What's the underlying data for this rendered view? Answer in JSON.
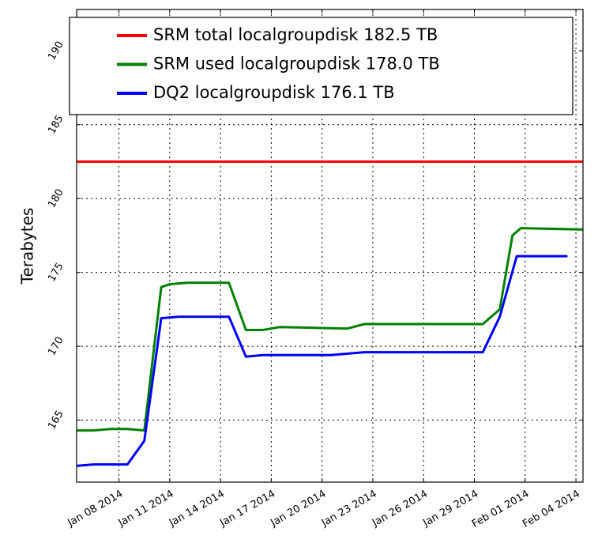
{
  "chart_data": {
    "type": "line",
    "y_label": "Terabytes",
    "xlim": [
      "2014-01-05 12:00",
      "2014-02-04 10:00"
    ],
    "ylim": [
      160.8,
      192.8
    ],
    "yticks": [
      165,
      170,
      175,
      180,
      185,
      190
    ],
    "xticks": [
      {
        "value": "2014-01-08",
        "label": "Jan 08 2014"
      },
      {
        "value": "2014-01-11",
        "label": "Jan 11 2014"
      },
      {
        "value": "2014-01-14",
        "label": "Jan 14 2014"
      },
      {
        "value": "2014-01-17",
        "label": "Jan 17 2014"
      },
      {
        "value": "2014-01-20",
        "label": "Jan 20 2014"
      },
      {
        "value": "2014-01-23",
        "label": "Jan 23 2014"
      },
      {
        "value": "2014-01-26",
        "label": "Jan 26 2014"
      },
      {
        "value": "2014-01-29",
        "label": "Jan 29 2014"
      },
      {
        "value": "2014-02-01",
        "label": "Feb 01 2014"
      },
      {
        "value": "2014-02-04",
        "label": "Feb 04 2014"
      }
    ],
    "grid": true,
    "legend": "top",
    "series": [
      {
        "name": "SRM total localgroupdisk 182.5 TB",
        "color": "#ff0000",
        "x": [
          "2014-01-05 12:00",
          "2014-02-04 10:00"
        ],
        "values": [
          182.5,
          182.5
        ]
      },
      {
        "name": "SRM used localgroupdisk 178.0 TB",
        "color": "#008000",
        "x": [
          "2014-01-05 12:00",
          "2014-01-06 12:00",
          "2014-01-07 12:00",
          "2014-01-08 12:00",
          "2014-01-09 12:00",
          "2014-01-10 12:00",
          "2014-01-11 00:00",
          "2014-01-12 00:00",
          "2014-01-13 00:00",
          "2014-01-14 12:00",
          "2014-01-15 12:00",
          "2014-01-16 12:00",
          "2014-01-17 12:00",
          "2014-01-21 12:00",
          "2014-01-22 12:00",
          "2014-01-29 12:00",
          "2014-01-30 12:00",
          "2014-01-31 06:00",
          "2014-01-31 18:00",
          "2014-02-04 10:00"
        ],
        "values": [
          164.3,
          164.3,
          164.4,
          164.4,
          164.3,
          174.0,
          174.2,
          174.3,
          174.3,
          174.3,
          171.1,
          171.1,
          171.3,
          171.2,
          171.5,
          171.5,
          172.5,
          177.5,
          178.0,
          177.9
        ]
      },
      {
        "name": "DQ2 localgroupdisk 176.1 TB",
        "color": "#0000ff",
        "x": [
          "2014-01-05 12:00",
          "2014-01-06 12:00",
          "2014-01-08 12:00",
          "2014-01-09 12:00",
          "2014-01-10 12:00",
          "2014-01-11 12:00",
          "2014-01-14 12:00",
          "2014-01-15 12:00",
          "2014-01-16 12:00",
          "2014-01-20 12:00",
          "2014-01-22 12:00",
          "2014-01-29 12:00",
          "2014-01-30 12:00",
          "2014-01-31 12:00",
          "2014-02-03 12:00"
        ],
        "values": [
          161.9,
          162.0,
          162.0,
          163.6,
          171.9,
          172.0,
          172.0,
          169.3,
          169.4,
          169.4,
          169.6,
          169.6,
          172.0,
          176.1,
          176.1
        ]
      }
    ]
  }
}
